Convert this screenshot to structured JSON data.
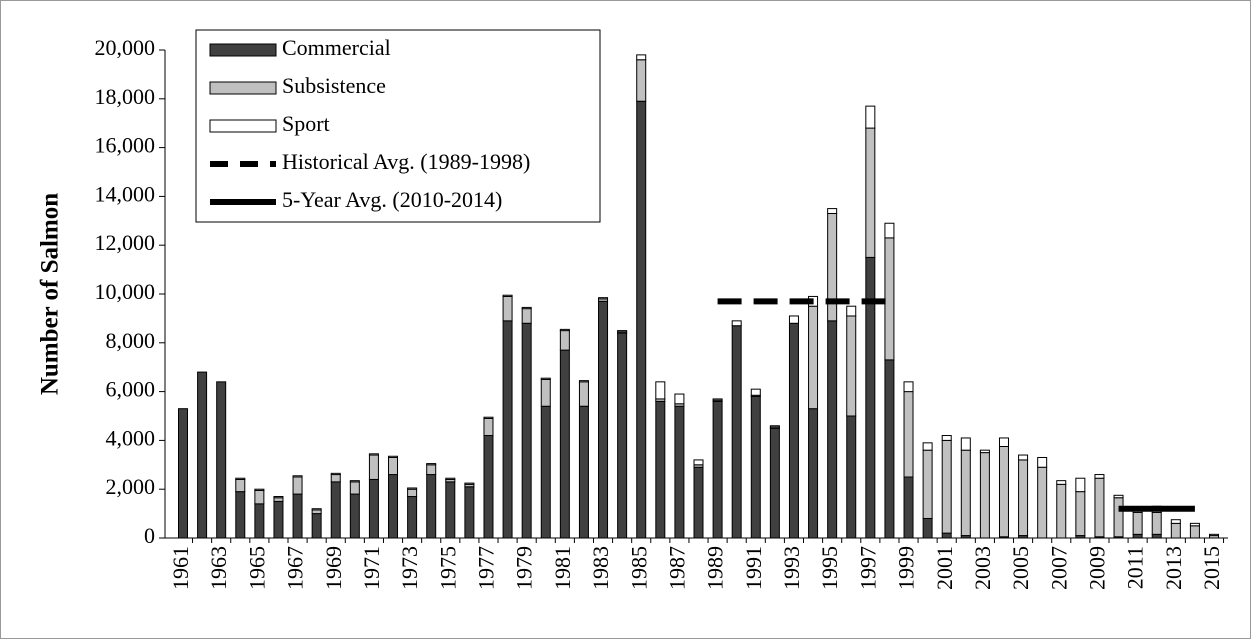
{
  "chart_data": {
    "type": "bar",
    "stacked": true,
    "y_label": "Number of Salmon",
    "categories": [
      "1961",
      null,
      "1963",
      null,
      "1965",
      null,
      "1967",
      null,
      "1969",
      null,
      "1971",
      null,
      "1973",
      null,
      "1975",
      null,
      "1977",
      null,
      "1979",
      null,
      "1981",
      null,
      "1983",
      null,
      "1985",
      null,
      "1987",
      null,
      "1989",
      null,
      "1991",
      null,
      "1993",
      null,
      "1995",
      null,
      "1997",
      null,
      "1999",
      null,
      "2001",
      null,
      "2003",
      null,
      "2005",
      null,
      "2007",
      null,
      "2009",
      null,
      "2011",
      null,
      "2013",
      null,
      "2015"
    ],
    "series": [
      {
        "name": "Commercial",
        "type": "bar",
        "color": "#404040",
        "values": [
          5300,
          6800,
          6400,
          1900,
          1400,
          1500,
          1800,
          1000,
          2300,
          1800,
          2400,
          2600,
          1700,
          2600,
          2300,
          2100,
          4200,
          8900,
          8800,
          5400,
          7700,
          5400,
          9700,
          8400,
          17900,
          5600,
          5400,
          2900,
          5600,
          8700,
          5800,
          4500,
          8800,
          5300,
          8900,
          5000,
          11500,
          7300,
          2500,
          800,
          200,
          100,
          0,
          50,
          100,
          0,
          0,
          100,
          50,
          50,
          150,
          150,
          0,
          0,
          0
        ]
      },
      {
        "name": "Subsistence",
        "type": "bar",
        "color": "#c0c0c0",
        "values": [
          0,
          0,
          0,
          500,
          550,
          150,
          700,
          150,
          300,
          500,
          1000,
          700,
          300,
          400,
          100,
          100,
          700,
          1000,
          600,
          1100,
          800,
          1000,
          100,
          50,
          1700,
          100,
          100,
          100,
          50,
          0,
          50,
          50,
          0,
          4200,
          4400,
          4100,
          5300,
          5000,
          3500,
          2800,
          3800,
          3500,
          3500,
          3700,
          3100,
          2900,
          2200,
          1800,
          2400,
          1600,
          900,
          900,
          600,
          500,
          100
        ]
      },
      {
        "name": "Sport",
        "type": "bar",
        "color": "#ffffff",
        "values": [
          0,
          0,
          0,
          50,
          50,
          50,
          50,
          50,
          50,
          50,
          50,
          50,
          50,
          50,
          50,
          50,
          50,
          50,
          50,
          50,
          50,
          50,
          50,
          50,
          200,
          700,
          400,
          200,
          50,
          200,
          250,
          50,
          300,
          400,
          200,
          400,
          900,
          600,
          400,
          300,
          200,
          500,
          100,
          350,
          200,
          400,
          150,
          550,
          150,
          100,
          150,
          250,
          150,
          100,
          50
        ]
      },
      {
        "name": "Historical Avg. (1989-1998)",
        "type": "line",
        "style": "dashed",
        "color": "#000000",
        "values": [
          null,
          null,
          null,
          null,
          null,
          null,
          null,
          null,
          null,
          null,
          null,
          null,
          null,
          null,
          null,
          null,
          null,
          null,
          null,
          null,
          null,
          null,
          null,
          null,
          null,
          null,
          null,
          null,
          9700,
          9700,
          9700,
          9700,
          9700,
          9700,
          9700,
          9700,
          9700,
          9700,
          null,
          null,
          null,
          null,
          null,
          null,
          null,
          null,
          null,
          null,
          null,
          null,
          null,
          null,
          null,
          null,
          null
        ]
      },
      {
        "name": "5-Year Avg. (2010-2014)",
        "type": "line",
        "style": "solid",
        "color": "#000000",
        "values": [
          null,
          null,
          null,
          null,
          null,
          null,
          null,
          null,
          null,
          null,
          null,
          null,
          null,
          null,
          null,
          null,
          null,
          null,
          null,
          null,
          null,
          null,
          null,
          null,
          null,
          null,
          null,
          null,
          null,
          null,
          null,
          null,
          null,
          null,
          null,
          null,
          null,
          null,
          null,
          null,
          null,
          null,
          null,
          null,
          null,
          null,
          null,
          null,
          null,
          1200,
          1200,
          1200,
          1200,
          1200,
          null
        ]
      }
    ],
    "ylim": [
      0,
      20000
    ],
    "yticks": [
      0,
      {
        "value": 2000,
        "label": "2,000"
      },
      {
        "value": 4000,
        "label": "4,000"
      },
      {
        "value": 6000,
        "label": "6,000"
      },
      {
        "value": 8000,
        "label": "8,000"
      },
      {
        "value": 10000,
        "label": "10,000"
      },
      {
        "value": 12000,
        "label": "12,000"
      },
      {
        "value": 14000,
        "label": "14,000"
      },
      {
        "value": 16000,
        "label": "16,000"
      },
      {
        "value": 18000,
        "label": "18,000"
      },
      {
        "value": 20000,
        "label": "20,000"
      }
    ],
    "legend": "top-left",
    "grid": false
  }
}
